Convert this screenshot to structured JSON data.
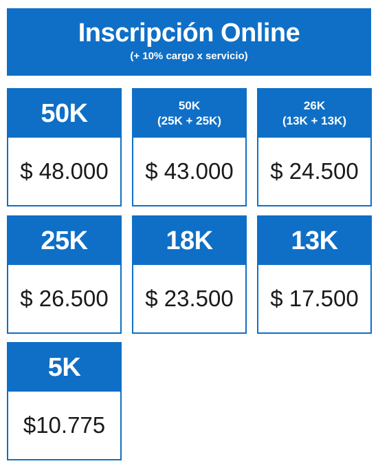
{
  "header": {
    "title": "Inscripción Online",
    "subtitle": "(+ 10% cargo x servicio)"
  },
  "cards": [
    {
      "title": "50K",
      "price": "$ 48.000"
    },
    {
      "title": "50K",
      "subtitle": "(25K + 25K)",
      "price": "$ 43.000"
    },
    {
      "title": "26K",
      "subtitle": "(13K + 13K)",
      "price": "$ 24.500"
    },
    {
      "title": "25K",
      "price": "$ 26.500"
    },
    {
      "title": "18K",
      "price": "$ 23.500"
    },
    {
      "title": "13K",
      "price": "$ 17.500"
    },
    {
      "title": "5K",
      "price": "$10.775"
    }
  ],
  "colors": {
    "accent": "#0f6fc6",
    "text": "#1a1a1a",
    "background": "#ffffff"
  }
}
